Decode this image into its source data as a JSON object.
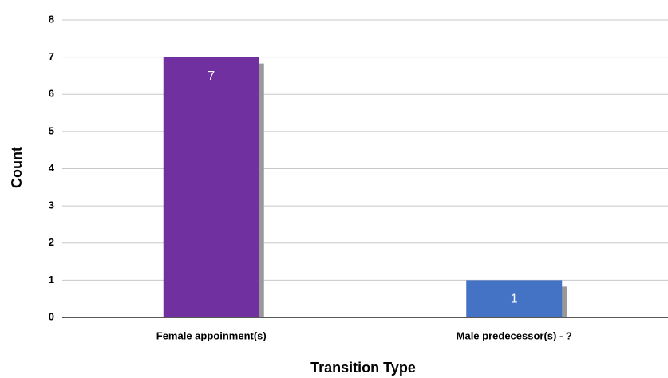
{
  "chart_data": {
    "type": "bar",
    "categories": [
      "Female appoinment(s)",
      "Male predecessor(s) - ?"
    ],
    "values": [
      7,
      1
    ],
    "colors": [
      "#7030a0",
      "#4472c4"
    ],
    "x_label": "Transition Type",
    "y_label": "Count",
    "ylim": [
      0,
      8
    ],
    "yticks": [
      0,
      1,
      2,
      3,
      4,
      5,
      6,
      7,
      8
    ],
    "grid": true
  }
}
